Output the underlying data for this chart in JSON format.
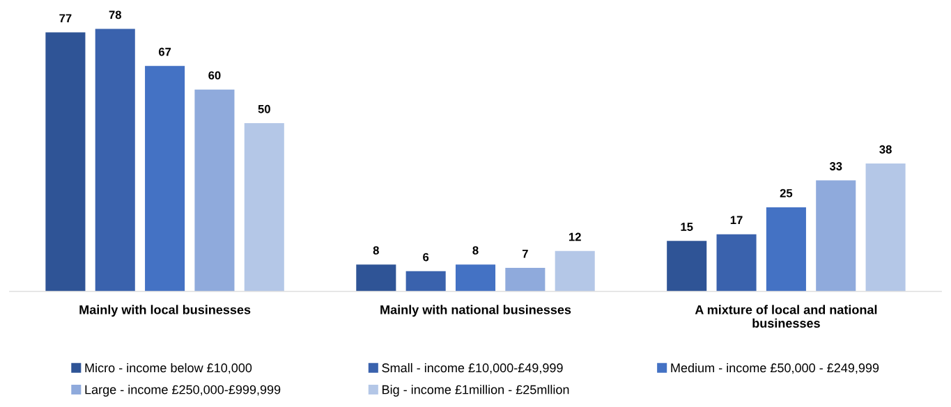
{
  "chart_data": {
    "type": "bar",
    "categories": [
      "Mainly with local businesses",
      "Mainly with national businesses",
      "A mixture of local and national businesses"
    ],
    "series": [
      {
        "name": "Micro - income below £10,000",
        "color": "#2f5496",
        "values": [
          77,
          8,
          15
        ]
      },
      {
        "name": "Small - income £10,000-£49,999",
        "color": "#3a62ad",
        "values": [
          78,
          6,
          17
        ]
      },
      {
        "name": "Medium - income £50,000 - £249,999",
        "color": "#4472c4",
        "values": [
          67,
          8,
          25
        ]
      },
      {
        "name": "Large - income £250,000-£999,999",
        "color": "#8faadc",
        "values": [
          60,
          7,
          33
        ]
      },
      {
        "name": "Big - income £1million - £25mllion",
        "color": "#b4c7e7",
        "values": [
          50,
          12,
          38
        ]
      }
    ],
    "data_labels": true,
    "legend": "bottom",
    "grid": false
  }
}
